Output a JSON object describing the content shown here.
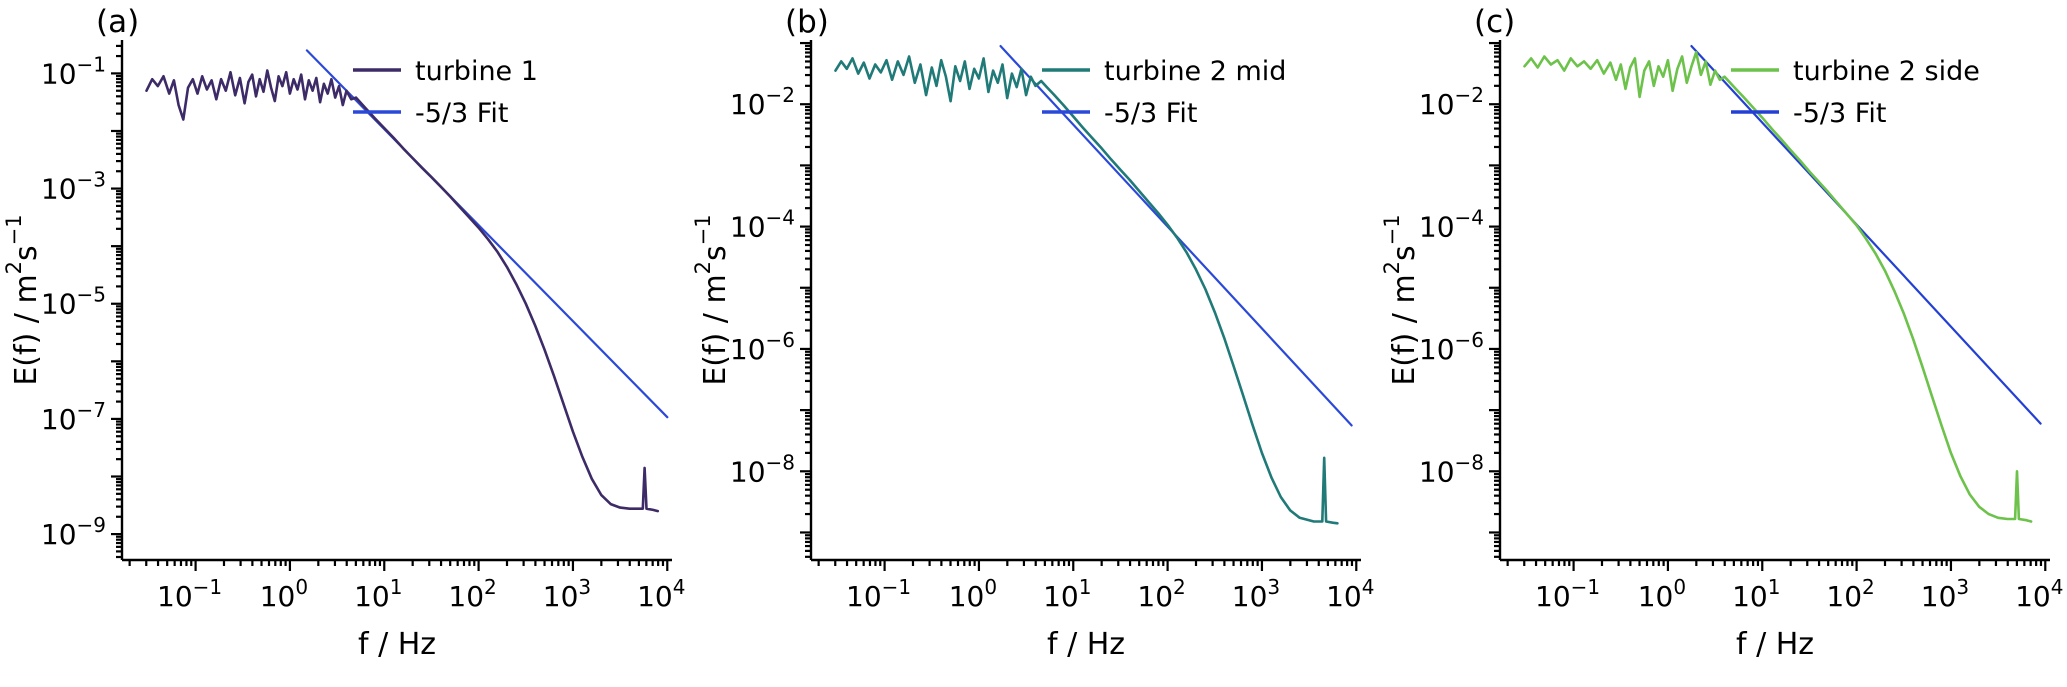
{
  "figure": {
    "background": "#ffffff",
    "text_color": "#000000"
  },
  "chart_data": [
    {
      "type": "line",
      "panel_label": "(a)",
      "xlabel": "f / Hz",
      "ylabel_parts": [
        {
          "t": "E(f) / m",
          "sup": false
        },
        {
          "t": "2",
          "sup": true
        },
        {
          "t": "s",
          "sup": false
        },
        {
          "t": "-1",
          "sup": true
        }
      ],
      "x_log_range": [
        -1.78,
        4.05
      ],
      "y_log_range": [
        -9.45,
        -0.42
      ],
      "x_label_exponents": [
        -1,
        0,
        1,
        2,
        3,
        4
      ],
      "y_label_exponents": [
        -1,
        -3,
        -5,
        -7,
        -9
      ],
      "legend_position": "top-right",
      "grid": false,
      "series": [
        {
          "name": "turbine 1",
          "color": "#3d2b68",
          "points": [
            [
              -1.52,
              -1.3
            ],
            [
              -1.46,
              -1.1
            ],
            [
              -1.4,
              -1.22
            ],
            [
              -1.34,
              -1.05
            ],
            [
              -1.28,
              -1.35
            ],
            [
              -1.23,
              -1.12
            ],
            [
              -1.18,
              -1.55
            ],
            [
              -1.13,
              -1.8
            ],
            [
              -1.08,
              -1.25
            ],
            [
              -1.03,
              -1.1
            ],
            [
              -0.98,
              -1.35
            ],
            [
              -0.93,
              -1.05
            ],
            [
              -0.88,
              -1.28
            ],
            [
              -0.83,
              -1.12
            ],
            [
              -0.78,
              -1.45
            ],
            [
              -0.73,
              -1.1
            ],
            [
              -0.68,
              -1.3
            ],
            [
              -0.63,
              -0.98
            ],
            [
              -0.58,
              -1.38
            ],
            [
              -0.53,
              -1.08
            ],
            [
              -0.48,
              -1.52
            ],
            [
              -0.44,
              -1.15
            ],
            [
              -0.4,
              -1.02
            ],
            [
              -0.36,
              -1.4
            ],
            [
              -0.32,
              -1.1
            ],
            [
              -0.28,
              -1.32
            ],
            [
              -0.24,
              -0.95
            ],
            [
              -0.2,
              -1.25
            ],
            [
              -0.16,
              -1.48
            ],
            [
              -0.12,
              -1.05
            ],
            [
              -0.08,
              -1.22
            ],
            [
              -0.04,
              -0.98
            ],
            [
              0.0,
              -1.35
            ],
            [
              0.04,
              -1.1
            ],
            [
              0.08,
              -1.28
            ],
            [
              0.12,
              -1.02
            ],
            [
              0.16,
              -1.45
            ],
            [
              0.2,
              -1.12
            ],
            [
              0.24,
              -1.3
            ],
            [
              0.28,
              -1.08
            ],
            [
              0.32,
              -1.5
            ],
            [
              0.36,
              -1.18
            ],
            [
              0.4,
              -1.35
            ],
            [
              0.44,
              -1.1
            ],
            [
              0.48,
              -1.42
            ],
            [
              0.52,
              -1.22
            ],
            [
              0.56,
              -1.55
            ],
            [
              0.6,
              -1.3
            ],
            [
              0.65,
              -1.45
            ],
            [
              0.7,
              -1.42
            ],
            [
              0.8,
              -1.6
            ],
            [
              0.9,
              -1.78
            ],
            [
              1.0,
              -1.95
            ],
            [
              1.1,
              -2.12
            ],
            [
              1.2,
              -2.3
            ],
            [
              1.3,
              -2.47
            ],
            [
              1.4,
              -2.64
            ],
            [
              1.5,
              -2.8
            ],
            [
              1.6,
              -2.97
            ],
            [
              1.7,
              -3.14
            ],
            [
              1.8,
              -3.32
            ],
            [
              1.9,
              -3.5
            ],
            [
              2.0,
              -3.68
            ],
            [
              2.1,
              -3.88
            ],
            [
              2.2,
              -4.1
            ],
            [
              2.3,
              -4.36
            ],
            [
              2.4,
              -4.66
            ],
            [
              2.5,
              -5.0
            ],
            [
              2.6,
              -5.38
            ],
            [
              2.7,
              -5.8
            ],
            [
              2.8,
              -6.26
            ],
            [
              2.9,
              -6.74
            ],
            [
              3.0,
              -7.22
            ],
            [
              3.1,
              -7.66
            ],
            [
              3.2,
              -8.04
            ],
            [
              3.3,
              -8.32
            ],
            [
              3.4,
              -8.48
            ],
            [
              3.5,
              -8.54
            ],
            [
              3.6,
              -8.56
            ],
            [
              3.7,
              -8.56
            ],
            [
              3.74,
              -8.56
            ],
            [
              3.76,
              -7.85
            ],
            [
              3.78,
              -8.56
            ],
            [
              3.85,
              -8.58
            ],
            [
              3.9,
              -8.6
            ]
          ]
        },
        {
          "name": "-5/3 Fit",
          "color": "#2b49d8",
          "points": [
            [
              0.18,
              -0.6
            ],
            [
              4.0,
              -6.97
            ]
          ]
        }
      ]
    },
    {
      "type": "line",
      "panel_label": "(b)",
      "xlabel": "f / Hz",
      "ylabel_parts": [
        {
          "t": "E(f) / m",
          "sup": false
        },
        {
          "t": "2",
          "sup": true
        },
        {
          "t": "s",
          "sup": false
        },
        {
          "t": "-1",
          "sup": true
        }
      ],
      "x_log_range": [
        -1.78,
        4.05
      ],
      "y_log_range": [
        -9.45,
        -0.95
      ],
      "x_label_exponents": [
        -1,
        0,
        1,
        2,
        3,
        4
      ],
      "y_label_exponents": [
        -2,
        -4,
        -6,
        -8
      ],
      "legend_position": "top-right",
      "grid": false,
      "series": [
        {
          "name": "turbine 2 mid",
          "color": "#1f7a78",
          "points": [
            [
              -1.52,
              -1.45
            ],
            [
              -1.46,
              -1.3
            ],
            [
              -1.4,
              -1.42
            ],
            [
              -1.34,
              -1.25
            ],
            [
              -1.28,
              -1.5
            ],
            [
              -1.22,
              -1.32
            ],
            [
              -1.16,
              -1.58
            ],
            [
              -1.1,
              -1.35
            ],
            [
              -1.04,
              -1.48
            ],
            [
              -0.98,
              -1.28
            ],
            [
              -0.92,
              -1.6
            ],
            [
              -0.86,
              -1.3
            ],
            [
              -0.8,
              -1.52
            ],
            [
              -0.74,
              -1.22
            ],
            [
              -0.68,
              -1.65
            ],
            [
              -0.62,
              -1.35
            ],
            [
              -0.56,
              -1.85
            ],
            [
              -0.5,
              -1.4
            ],
            [
              -0.45,
              -1.7
            ],
            [
              -0.4,
              -1.28
            ],
            [
              -0.35,
              -1.55
            ],
            [
              -0.3,
              -1.95
            ],
            [
              -0.25,
              -1.38
            ],
            [
              -0.2,
              -1.62
            ],
            [
              -0.15,
              -1.3
            ],
            [
              -0.1,
              -1.75
            ],
            [
              -0.05,
              -1.42
            ],
            [
              0.0,
              -1.58
            ],
            [
              0.05,
              -1.25
            ],
            [
              0.1,
              -1.8
            ],
            [
              0.15,
              -1.45
            ],
            [
              0.2,
              -1.65
            ],
            [
              0.25,
              -1.35
            ],
            [
              0.3,
              -1.9
            ],
            [
              0.35,
              -1.5
            ],
            [
              0.4,
              -1.72
            ],
            [
              0.45,
              -1.42
            ],
            [
              0.5,
              -1.85
            ],
            [
              0.55,
              -1.55
            ],
            [
              0.6,
              -1.7
            ],
            [
              0.66,
              -1.62
            ],
            [
              0.72,
              -1.72
            ],
            [
              0.8,
              -1.85
            ],
            [
              0.9,
              -2.02
            ],
            [
              1.0,
              -2.2
            ],
            [
              1.1,
              -2.38
            ],
            [
              1.2,
              -2.55
            ],
            [
              1.3,
              -2.72
            ],
            [
              1.4,
              -2.9
            ],
            [
              1.5,
              -3.07
            ],
            [
              1.6,
              -3.24
            ],
            [
              1.7,
              -3.42
            ],
            [
              1.8,
              -3.6
            ],
            [
              1.9,
              -3.78
            ],
            [
              2.0,
              -3.97
            ],
            [
              2.1,
              -4.18
            ],
            [
              2.2,
              -4.42
            ],
            [
              2.3,
              -4.7
            ],
            [
              2.4,
              -5.02
            ],
            [
              2.5,
              -5.4
            ],
            [
              2.6,
              -5.82
            ],
            [
              2.7,
              -6.28
            ],
            [
              2.8,
              -6.76
            ],
            [
              2.9,
              -7.24
            ],
            [
              3.0,
              -7.7
            ],
            [
              3.1,
              -8.1
            ],
            [
              3.2,
              -8.42
            ],
            [
              3.3,
              -8.64
            ],
            [
              3.4,
              -8.76
            ],
            [
              3.5,
              -8.8
            ],
            [
              3.55,
              -8.82
            ],
            [
              3.6,
              -8.82
            ],
            [
              3.64,
              -8.82
            ],
            [
              3.66,
              -7.78
            ],
            [
              3.68,
              -8.82
            ],
            [
              3.75,
              -8.84
            ],
            [
              3.8,
              -8.85
            ]
          ]
        },
        {
          "name": "-5/3 Fit",
          "color": "#2b49d8",
          "points": [
            [
              0.23,
              -1.05
            ],
            [
              3.95,
              -7.25
            ]
          ]
        }
      ]
    },
    {
      "type": "line",
      "panel_label": "(c)",
      "xlabel": "f / Hz",
      "ylabel_parts": [
        {
          "t": "E(f) / m",
          "sup": false
        },
        {
          "t": "2",
          "sup": true
        },
        {
          "t": "s",
          "sup": false
        },
        {
          "t": "-1",
          "sup": true
        }
      ],
      "x_log_range": [
        -1.78,
        4.05
      ],
      "y_log_range": [
        -9.45,
        -0.95
      ],
      "x_label_exponents": [
        -1,
        0,
        1,
        2,
        3,
        4
      ],
      "y_label_exponents": [
        -2,
        -4,
        -6,
        -8
      ],
      "legend_position": "top-right",
      "grid": false,
      "series": [
        {
          "name": "turbine 2 side",
          "color": "#6cc24a",
          "points": [
            [
              -1.52,
              -1.38
            ],
            [
              -1.45,
              -1.25
            ],
            [
              -1.38,
              -1.4
            ],
            [
              -1.31,
              -1.22
            ],
            [
              -1.24,
              -1.35
            ],
            [
              -1.17,
              -1.28
            ],
            [
              -1.1,
              -1.45
            ],
            [
              -1.03,
              -1.25
            ],
            [
              -0.96,
              -1.38
            ],
            [
              -0.89,
              -1.3
            ],
            [
              -0.82,
              -1.42
            ],
            [
              -0.75,
              -1.28
            ],
            [
              -0.68,
              -1.5
            ],
            [
              -0.61,
              -1.32
            ],
            [
              -0.55,
              -1.6
            ],
            [
              -0.5,
              -1.35
            ],
            [
              -0.45,
              -1.75
            ],
            [
              -0.4,
              -1.4
            ],
            [
              -0.35,
              -1.25
            ],
            [
              -0.3,
              -1.88
            ],
            [
              -0.25,
              -1.45
            ],
            [
              -0.2,
              -1.3
            ],
            [
              -0.15,
              -1.7
            ],
            [
              -0.1,
              -1.38
            ],
            [
              -0.05,
              -1.55
            ],
            [
              0.0,
              -1.28
            ],
            [
              0.05,
              -1.78
            ],
            [
              0.1,
              -1.42
            ],
            [
              0.15,
              -1.22
            ],
            [
              0.2,
              -1.65
            ],
            [
              0.25,
              -1.38
            ],
            [
              0.3,
              -1.15
            ],
            [
              0.35,
              -1.52
            ],
            [
              0.4,
              -1.3
            ],
            [
              0.45,
              -1.68
            ],
            [
              0.5,
              -1.45
            ],
            [
              0.55,
              -1.6
            ],
            [
              0.6,
              -1.55
            ],
            [
              0.66,
              -1.65
            ],
            [
              0.72,
              -1.75
            ],
            [
              0.8,
              -1.88
            ],
            [
              0.9,
              -2.05
            ],
            [
              1.0,
              -2.22
            ],
            [
              1.1,
              -2.4
            ],
            [
              1.2,
              -2.57
            ],
            [
              1.3,
              -2.75
            ],
            [
              1.4,
              -2.92
            ],
            [
              1.5,
              -3.1
            ],
            [
              1.6,
              -3.27
            ],
            [
              1.7,
              -3.44
            ],
            [
              1.8,
              -3.62
            ],
            [
              1.9,
              -3.8
            ],
            [
              2.0,
              -3.98
            ],
            [
              2.1,
              -4.2
            ],
            [
              2.2,
              -4.44
            ],
            [
              2.3,
              -4.72
            ],
            [
              2.4,
              -5.05
            ],
            [
              2.5,
              -5.42
            ],
            [
              2.6,
              -5.84
            ],
            [
              2.7,
              -6.3
            ],
            [
              2.8,
              -6.78
            ],
            [
              2.9,
              -7.25
            ],
            [
              3.0,
              -7.7
            ],
            [
              3.1,
              -8.08
            ],
            [
              3.2,
              -8.38
            ],
            [
              3.3,
              -8.58
            ],
            [
              3.4,
              -8.7
            ],
            [
              3.5,
              -8.76
            ],
            [
              3.6,
              -8.78
            ],
            [
              3.68,
              -8.78
            ],
            [
              3.7,
              -8.0
            ],
            [
              3.72,
              -8.78
            ],
            [
              3.8,
              -8.8
            ],
            [
              3.85,
              -8.82
            ]
          ]
        },
        {
          "name": "-5/3 Fit",
          "color": "#2440d4",
          "points": [
            [
              0.25,
              -1.05
            ],
            [
              3.95,
              -7.22
            ]
          ]
        }
      ]
    }
  ]
}
